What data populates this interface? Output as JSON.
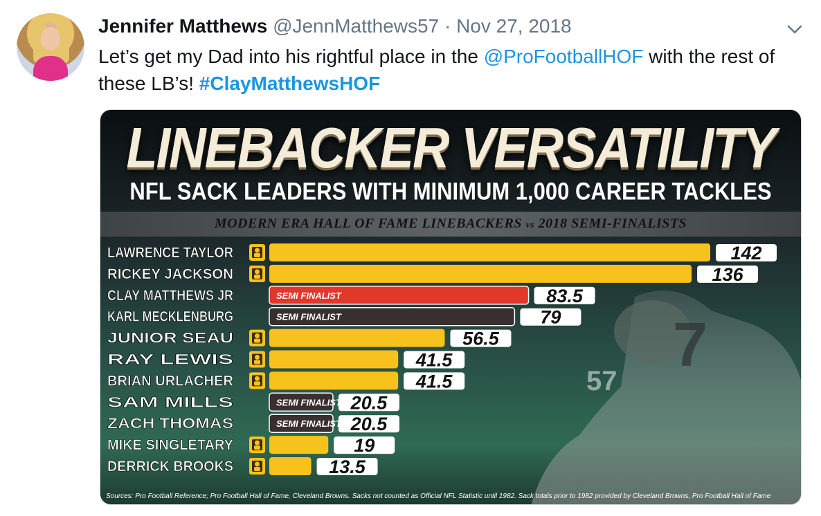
{
  "tweet": {
    "author_name": "Jennifer Matthews",
    "handle": "@JennMatthews57",
    "separator": "·",
    "date": "Nov 27, 2018",
    "text_part1": "Let’s get my Dad into his rightful place in the ",
    "mention": "@ProFootballHOF",
    "text_part2": " with the rest of these LB’s! ",
    "hashtag": "#ClayMatthewsHOF"
  },
  "icons": {
    "more": "chevron-down-icon",
    "hof": "hall-of-fame-bust-icon"
  },
  "colors": {
    "hof_bar": "#f7c21b",
    "clay_bar": "#e2372b",
    "semi_bar": "#3a2f2f",
    "link": "#1b95e0"
  },
  "chart_data": {
    "type": "bar",
    "orientation": "horizontal",
    "title": "LINEBACKER VERSATILITY",
    "subtitle": "NFL SACK LEADERS WITH MINIMUM 1,000 CAREER TACKLES",
    "banner_part1": "MODERN ERA HALL OF FAME LINEBACKERS",
    "banner_vs": "vs",
    "banner_part2": "2018 SEMI-FINALISTS",
    "semi_label": "SEMI FINALIST",
    "categories": [
      "LAWRENCE TAYLOR",
      "RICKEY JACKSON",
      "CLAY MATTHEWS JR",
      "KARL MECKLENBURG",
      "JUNIOR SEAU",
      "RAY LEWIS",
      "BRIAN URLACHER",
      "SAM MILLS",
      "ZACH THOMAS",
      "MIKE SINGLETARY",
      "DERRICK BROOKS"
    ],
    "values": [
      142,
      136,
      83.5,
      79,
      56.5,
      41.5,
      41.5,
      20.5,
      20.5,
      19,
      13.5
    ],
    "value_labels": [
      "142",
      "136",
      "83.5",
      "79",
      "56.5",
      "41.5",
      "41.5",
      "20.5",
      "20.5",
      "19",
      "13.5"
    ],
    "status": [
      "hof",
      "hof",
      "semi-highlight",
      "semi",
      "hof",
      "hof",
      "hof",
      "semi",
      "semi",
      "hof",
      "hof"
    ],
    "xlim": [
      0,
      142
    ],
    "source": "Sources: Pro Football Reference; Pro Football Hall of Fame, Cleveland Browns. Sacks not counted as Official NFL Statistic until 1982. Sack totals prior to 1982 provided by Cleveland Browns, Pro Football Hall of Fame"
  }
}
